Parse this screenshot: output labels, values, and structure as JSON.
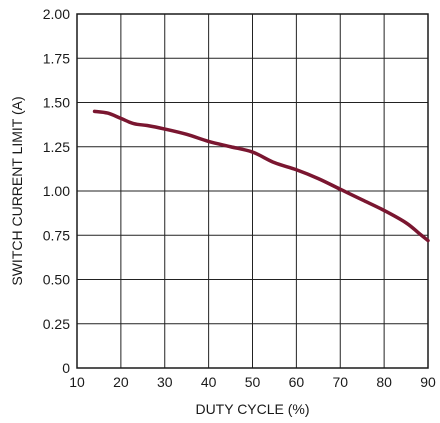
{
  "chart_data": {
    "type": "line",
    "title": "",
    "xlabel": "DUTY CYCLE (%)",
    "ylabel": "SWITCH CURRENT LIMIT (A)",
    "xlim": [
      10,
      90
    ],
    "ylim": [
      0,
      2.0
    ],
    "x_ticks": [
      "10",
      "20",
      "30",
      "40",
      "50",
      "60",
      "70",
      "80",
      "90"
    ],
    "y_ticks": [
      "0",
      "0.25",
      "0.50",
      "0.75",
      "1.00",
      "1.25",
      "1.50",
      "1.75",
      "2.00"
    ],
    "grid": true,
    "line_color": "#7a1630",
    "series": [
      {
        "x": [
          14,
          17,
          20,
          23,
          26,
          30,
          35,
          40,
          45,
          50,
          55,
          60,
          65,
          70,
          75,
          80,
          85,
          88,
          90
        ],
        "y": [
          1.45,
          1.44,
          1.41,
          1.38,
          1.37,
          1.35,
          1.32,
          1.28,
          1.25,
          1.22,
          1.16,
          1.12,
          1.07,
          1.01,
          0.95,
          0.89,
          0.82,
          0.76,
          0.72
        ]
      }
    ]
  }
}
